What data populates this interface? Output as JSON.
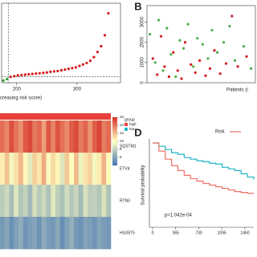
{
  "chart_data": [
    {
      "type": "scatter",
      "xlabel": "creasing risk score)",
      "xlim": [
        175,
        372
      ],
      "ylim": [
        0,
        10
      ],
      "xticks": [
        200,
        300
      ],
      "vline": 186,
      "hline": 0.8,
      "series": [
        {
          "color": "#2ca02c",
          "x": [
            178,
            184
          ],
          "values": [
            0.3,
            0.5
          ]
        },
        {
          "color": "#d7191c",
          "x": [
            190,
            196,
            202,
            208,
            214,
            220,
            226,
            232,
            238,
            244,
            250,
            256,
            262,
            268,
            274,
            280,
            286,
            292,
            298,
            304,
            310,
            316,
            322,
            328,
            334,
            340,
            346,
            352
          ],
          "values": [
            0.8,
            0.9,
            1.0,
            1.05,
            1.1,
            1.15,
            1.2,
            1.25,
            1.3,
            1.35,
            1.4,
            1.5,
            1.55,
            1.6,
            1.7,
            1.8,
            1.9,
            2.0,
            2.1,
            2.3,
            2.5,
            2.7,
            3.0,
            3.5,
            4.2,
            5.0,
            6.5,
            9.5
          ]
        }
      ]
    },
    {
      "type": "scatter",
      "panel_label": "B",
      "xlabel": "Patients (i",
      "xlim": [
        0,
        370
      ],
      "ylim": [
        0,
        3500
      ],
      "yticks": [
        0,
        1000,
        2000,
        3000
      ],
      "series": [
        {
          "color": "#d7191c",
          "x": [
            20,
            35,
            48,
            60,
            75,
            90,
            105,
            118,
            130,
            150,
            165,
            180,
            200,
            215,
            230,
            250,
            270,
            290,
            310,
            340
          ],
          "values": [
            1200,
            400,
            2300,
            800,
            300,
            1500,
            600,
            200,
            2000,
            900,
            500,
            1100,
            350,
            700,
            1600,
            450,
            950,
            3300,
            800,
            1300
          ]
        },
        {
          "color": "#4daf4a",
          "x": [
            10,
            28,
            40,
            55,
            68,
            82,
            98,
            112,
            125,
            140,
            158,
            172,
            190,
            208,
            222,
            240,
            262,
            282,
            300,
            330,
            355
          ],
          "values": [
            2400,
            1000,
            3100,
            600,
            2700,
            1400,
            300,
            2100,
            1700,
            2900,
            800,
            2200,
            1900,
            1200,
            2600,
            1500,
            2000,
            2800,
            1100,
            1800,
            700
          ]
        }
      ]
    },
    {
      "type": "heatmap",
      "rows": [
        "SQSTM1",
        "ETV4",
        "RTN3",
        "HS3ST5"
      ],
      "z": [
        [
          14.2,
          13.5,
          15.1,
          14.0,
          13.2,
          14.8,
          15.3,
          13.9,
          14.4,
          12.8,
          14.9,
          13.6,
          15.0,
          14.1,
          13.4,
          14.7,
          15.2,
          13.8,
          14.5,
          13.1,
          14.6,
          15.4,
          13.7,
          14.3
        ],
        [
          10.5,
          11.8,
          9.6,
          10.9,
          12.1,
          10.2,
          9.1,
          11.4,
          10.7,
          12.4,
          9.8,
          11.1,
          10.3,
          8.9,
          11.6,
          10.0,
          12.0,
          9.4,
          10.8,
          11.3,
          9.7,
          10.6,
          12.2,
          10.1
        ],
        [
          7.8,
          8.4,
          7.2,
          8.9,
          7.5,
          8.1,
          7.0,
          8.6,
          7.7,
          8.3,
          7.4,
          9.0,
          7.9,
          7.3,
          8.5,
          7.6,
          8.2,
          7.1,
          8.7,
          7.8,
          8.0,
          7.5,
          8.8,
          7.4
        ],
        [
          5.6,
          6.1,
          5.2,
          5.9,
          6.4,
          5.4,
          5.8,
          6.0,
          5.3,
          6.3,
          5.7,
          5.5,
          6.2,
          5.1,
          5.9,
          6.5,
          5.6,
          5.3,
          6.0,
          5.8,
          5.4,
          6.1,
          5.7,
          5.5
        ]
      ],
      "clim": [
        4,
        16
      ],
      "cticks": [
        16,
        14,
        12,
        10,
        8,
        6
      ],
      "group_legend": {
        "title": "group",
        "labels": [
          "high",
          "low"
        ],
        "colors": [
          "#e8413b",
          "#2ab7ca"
        ]
      }
    },
    {
      "type": "line",
      "panel_label": "D",
      "step": true,
      "ylabel": "Survival probability",
      "legend_title": "Risk",
      "annotation": "p=1.042e-04",
      "xlim": [
        0,
        1600
      ],
      "ylim": [
        0,
        1
      ],
      "xticks": [
        0,
        365,
        730,
        1095,
        1460
      ],
      "series": [
        {
          "color": "#1fb3c4",
          "x": [
            0,
            100,
            200,
            300,
            400,
            500,
            600,
            700,
            800,
            900,
            1000,
            1100,
            1200,
            1300,
            1400,
            1500,
            1600
          ],
          "values": [
            1,
            0.96,
            0.92,
            0.88,
            0.86,
            0.82,
            0.8,
            0.78,
            0.77,
            0.75,
            0.74,
            0.7,
            0.68,
            0.66,
            0.62,
            0.58,
            0.55
          ]
        },
        {
          "color": "#f07167",
          "x": [
            0,
            100,
            200,
            300,
            400,
            500,
            600,
            700,
            800,
            900,
            1000,
            1100,
            1200,
            1300,
            1400,
            1500,
            1600
          ],
          "values": [
            1,
            0.9,
            0.8,
            0.72,
            0.66,
            0.6,
            0.56,
            0.53,
            0.5,
            0.48,
            0.46,
            0.44,
            0.42,
            0.4,
            0.39,
            0.38,
            0.38
          ]
        }
      ]
    }
  ]
}
